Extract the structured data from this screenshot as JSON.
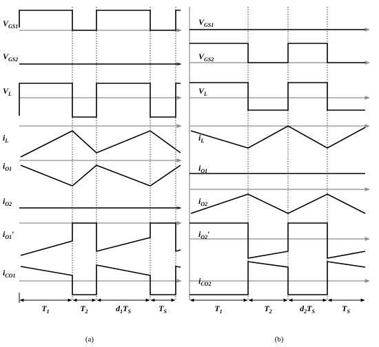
{
  "panels": [
    {
      "caption": "(a)",
      "signals": [
        [
          {
            "b": "V"
          },
          {
            "s": "GS1"
          }
        ],
        [
          {
            "b": "V"
          },
          {
            "s": "GS2"
          }
        ],
        [
          {
            "b": "V"
          },
          {
            "s": "L"
          }
        ],
        [
          {
            "b": "i"
          },
          {
            "s": "L"
          }
        ],
        [
          {
            "b": "i"
          },
          {
            "s": "O1"
          }
        ],
        [
          {
            "b": "i"
          },
          {
            "s": "O2"
          }
        ],
        [
          {
            "b": "i"
          },
          {
            "s": "O1"
          },
          {
            "b": "′"
          }
        ],
        [
          {
            "b": "i"
          },
          {
            "s": "CO1"
          }
        ]
      ],
      "intervals": [
        [
          {
            "b": "T"
          },
          {
            "s": "1"
          }
        ],
        [
          {
            "b": "T"
          },
          {
            "s": "2"
          }
        ],
        [
          {
            "b": "d"
          },
          {
            "s": "1"
          },
          {
            "b": "T"
          },
          {
            "s": "S"
          }
        ],
        [
          {
            "b": "T"
          },
          {
            "s": "S"
          }
        ]
      ]
    },
    {
      "caption": "(b)",
      "signals": [
        [
          {
            "b": "V"
          },
          {
            "s": "GS1"
          }
        ],
        [
          {
            "b": "V"
          },
          {
            "s": "GS2"
          }
        ],
        [
          {
            "b": "V"
          },
          {
            "s": "L"
          }
        ],
        [
          {
            "b": "i"
          },
          {
            "s": "L"
          }
        ],
        [
          {
            "b": "i"
          },
          {
            "s": "O1"
          }
        ],
        [
          {
            "b": "i"
          },
          {
            "s": "O2"
          }
        ],
        [
          {
            "b": "i"
          },
          {
            "s": "O2"
          },
          {
            "b": "′"
          }
        ],
        [
          {
            "b": "i"
          },
          {
            "s": "CO2"
          }
        ]
      ],
      "intervals": [
        [
          {
            "b": "T"
          },
          {
            "s": "1"
          }
        ],
        [
          {
            "b": "T"
          },
          {
            "s": "2"
          }
        ],
        [
          {
            "b": "d"
          },
          {
            "s": "2"
          },
          {
            "b": "T"
          },
          {
            "s": "S"
          }
        ],
        [
          {
            "b": "T"
          },
          {
            "s": "S"
          }
        ]
      ]
    }
  ]
}
